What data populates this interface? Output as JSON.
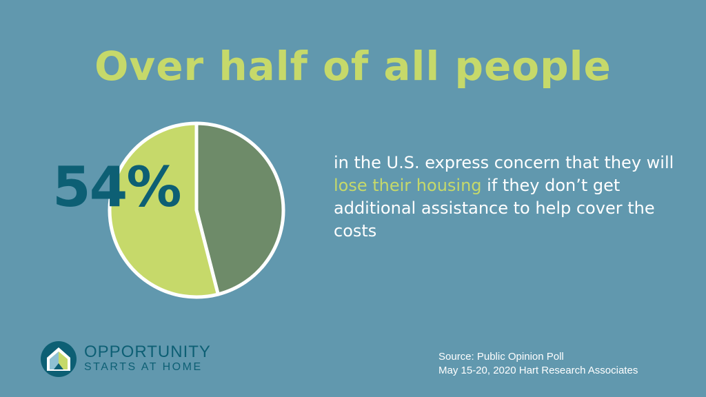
{
  "title": "Over half of all people",
  "description": {
    "part1": "in the U.S. express concern that they will ",
    "highlight": "lose their housing",
    "part2": " if they don’t get additional assistance to help cover the costs"
  },
  "logo": {
    "line1": "OPPORTUNITY",
    "line2": "STARTS AT HOME"
  },
  "source": {
    "line1": "Source: Public Opinion Poll",
    "line2": "May 15-20, 2020 Hart Research Associates"
  },
  "colors": {
    "background": "#6198ae",
    "accent": "#c6d96a",
    "remainder": "#6e8b69",
    "pct_text": "#0d5f74"
  },
  "chart_data": {
    "type": "pie",
    "slices": [
      {
        "label": "54%",
        "value": 54,
        "color": "#c6d96a"
      },
      {
        "label": "",
        "value": 46,
        "color": "#6e8b69"
      }
    ]
  }
}
